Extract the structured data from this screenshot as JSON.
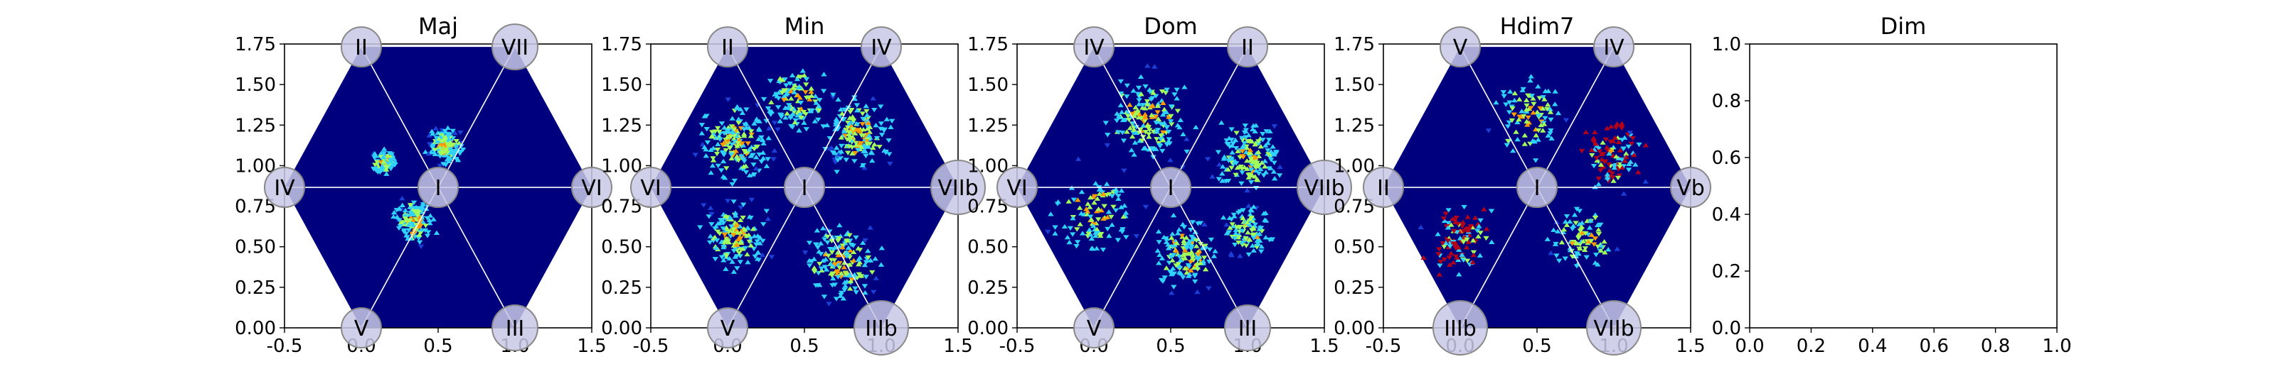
{
  "chart_data": [
    {
      "type": "heatmap",
      "title": "Maj",
      "xlim": [
        -0.5,
        1.5
      ],
      "ylim": [
        0.0,
        1.75
      ],
      "xticks": [
        "-0.5",
        "0.0",
        "0.5",
        "1.0",
        "1.5"
      ],
      "yticks": [
        "0.00",
        "0.25",
        "0.50",
        "0.75",
        "1.00",
        "1.25",
        "1.50",
        "1.75"
      ],
      "nodes": [
        {
          "label": "I",
          "x": 0.5,
          "y": 0.866
        },
        {
          "label": "II",
          "x": 0.0,
          "y": 1.732
        },
        {
          "label": "VII",
          "x": 1.0,
          "y": 1.732
        },
        {
          "label": "IV",
          "x": -0.5,
          "y": 0.866
        },
        {
          "label": "VI",
          "x": 1.5,
          "y": 0.866
        },
        {
          "label": "V",
          "x": 0.0,
          "y": 0.0
        },
        {
          "label": "III",
          "x": 1.0,
          "y": 0.0
        }
      ],
      "hotspots": [
        {
          "x": 0.55,
          "y": 1.12,
          "spread": 0.1,
          "density": 0.9
        },
        {
          "x": 0.35,
          "y": 0.65,
          "spread": 0.12,
          "density": 0.8
        },
        {
          "x": 0.15,
          "y": 1.02,
          "spread": 0.08,
          "density": 0.4
        }
      ]
    },
    {
      "type": "heatmap",
      "title": "Min",
      "xlim": [
        -0.5,
        1.5
      ],
      "ylim": [
        0.0,
        1.75
      ],
      "xticks": [
        "-0.5",
        "0.0",
        "0.5",
        "1.0",
        "1.5"
      ],
      "yticks": [
        "0.00",
        "0.25",
        "0.50",
        "0.75",
        "1.00",
        "1.25",
        "1.50",
        "1.75"
      ],
      "nodes": [
        {
          "label": "I",
          "x": 0.5,
          "y": 0.866
        },
        {
          "label": "II",
          "x": 0.0,
          "y": 1.732
        },
        {
          "label": "IV",
          "x": 1.0,
          "y": 1.732
        },
        {
          "label": "VI",
          "x": -0.5,
          "y": 0.866
        },
        {
          "label": "VIIb",
          "x": 1.5,
          "y": 0.866
        },
        {
          "label": "V",
          "x": 0.0,
          "y": 0.0
        },
        {
          "label": "IIIb",
          "x": 1.0,
          "y": 0.0
        }
      ],
      "hotspots": [
        {
          "x": 0.05,
          "y": 1.15,
          "spread": 0.22,
          "density": 1.0
        },
        {
          "x": 0.85,
          "y": 1.2,
          "spread": 0.2,
          "density": 1.0
        },
        {
          "x": 0.05,
          "y": 0.55,
          "spread": 0.2,
          "density": 0.9
        },
        {
          "x": 0.75,
          "y": 0.4,
          "spread": 0.22,
          "density": 0.9
        },
        {
          "x": 0.45,
          "y": 1.4,
          "spread": 0.2,
          "density": 0.7
        }
      ]
    },
    {
      "type": "heatmap",
      "title": "Dom",
      "xlim": [
        -0.5,
        1.5
      ],
      "ylim": [
        0.0,
        1.75
      ],
      "xticks": [
        "-0.5",
        "0.0",
        "0.5",
        "1.0",
        "1.5"
      ],
      "yticks": [
        "0.00",
        "0.25",
        "0.50",
        "0.75",
        "1.00",
        "1.25",
        "1.50",
        "1.75"
      ],
      "nodes": [
        {
          "label": "I",
          "x": 0.5,
          "y": 0.866
        },
        {
          "label": "IV",
          "x": 0.0,
          "y": 1.732
        },
        {
          "label": "II",
          "x": 1.0,
          "y": 1.732
        },
        {
          "label": "VI",
          "x": -0.5,
          "y": 0.866
        },
        {
          "label": "VIIb",
          "x": 1.5,
          "y": 0.866
        },
        {
          "label": "V",
          "x": 0.0,
          "y": 0.0
        },
        {
          "label": "III",
          "x": 1.0,
          "y": 0.0
        }
      ],
      "hotspots": [
        {
          "x": 0.35,
          "y": 1.3,
          "spread": 0.25,
          "density": 1.0
        },
        {
          "x": 1.0,
          "y": 1.05,
          "spread": 0.2,
          "density": 0.9
        },
        {
          "x": 0.6,
          "y": 0.45,
          "spread": 0.2,
          "density": 0.8
        },
        {
          "x": 0.0,
          "y": 0.7,
          "spread": 0.25,
          "density": 0.6
        },
        {
          "x": 1.0,
          "y": 0.6,
          "spread": 0.15,
          "density": 0.6
        }
      ]
    },
    {
      "type": "heatmap",
      "title": "Hdim7",
      "xlim": [
        -0.5,
        1.5
      ],
      "ylim": [
        0.0,
        1.75
      ],
      "xticks": [
        "-0.5",
        "0.0",
        "0.5",
        "1.0",
        "1.5"
      ],
      "yticks": [
        "0.00",
        "0.25",
        "0.50",
        "0.75",
        "1.00",
        "1.25",
        "1.50",
        "1.75"
      ],
      "nodes": [
        {
          "label": "I",
          "x": 0.5,
          "y": 0.866
        },
        {
          "label": "V",
          "x": 0.0,
          "y": 1.732
        },
        {
          "label": "IV",
          "x": 1.0,
          "y": 1.732
        },
        {
          "label": "II",
          "x": -0.5,
          "y": 0.866
        },
        {
          "label": "Vb",
          "x": 1.5,
          "y": 0.866
        },
        {
          "label": "IIIb",
          "x": 0.0,
          "y": 0.0
        },
        {
          "label": "VIIb",
          "x": 1.0,
          "y": 0.0
        }
      ],
      "hotspots": [
        {
          "x": 0.0,
          "y": 0.55,
          "spread": 0.2,
          "density": 0.6,
          "hot": true
        },
        {
          "x": 1.0,
          "y": 1.05,
          "spread": 0.18,
          "density": 0.6,
          "hot": true
        },
        {
          "x": 0.45,
          "y": 1.3,
          "spread": 0.22,
          "density": 0.5
        },
        {
          "x": 0.8,
          "y": 0.55,
          "spread": 0.2,
          "density": 0.5
        }
      ]
    },
    {
      "type": "scatter",
      "title": "Dim",
      "xlim": [
        0.0,
        1.0
      ],
      "ylim": [
        0.0,
        1.0
      ],
      "xticks": [
        "0.0",
        "0.2",
        "0.4",
        "0.6",
        "0.8",
        "1.0"
      ],
      "yticks": [
        "0.0",
        "0.2",
        "0.4",
        "0.6",
        "0.8",
        "1.0"
      ],
      "empty": true
    }
  ],
  "colors": {
    "background": "#00007f",
    "low": "#1c3fd6",
    "mid": "#2fd1ff",
    "high": "#a3ff5a",
    "peak": "#ff9a00",
    "hot": "#b3001a",
    "node_fill": "#c8c8e6",
    "node_stroke": "#888888",
    "grid_line": "#ffffff"
  }
}
